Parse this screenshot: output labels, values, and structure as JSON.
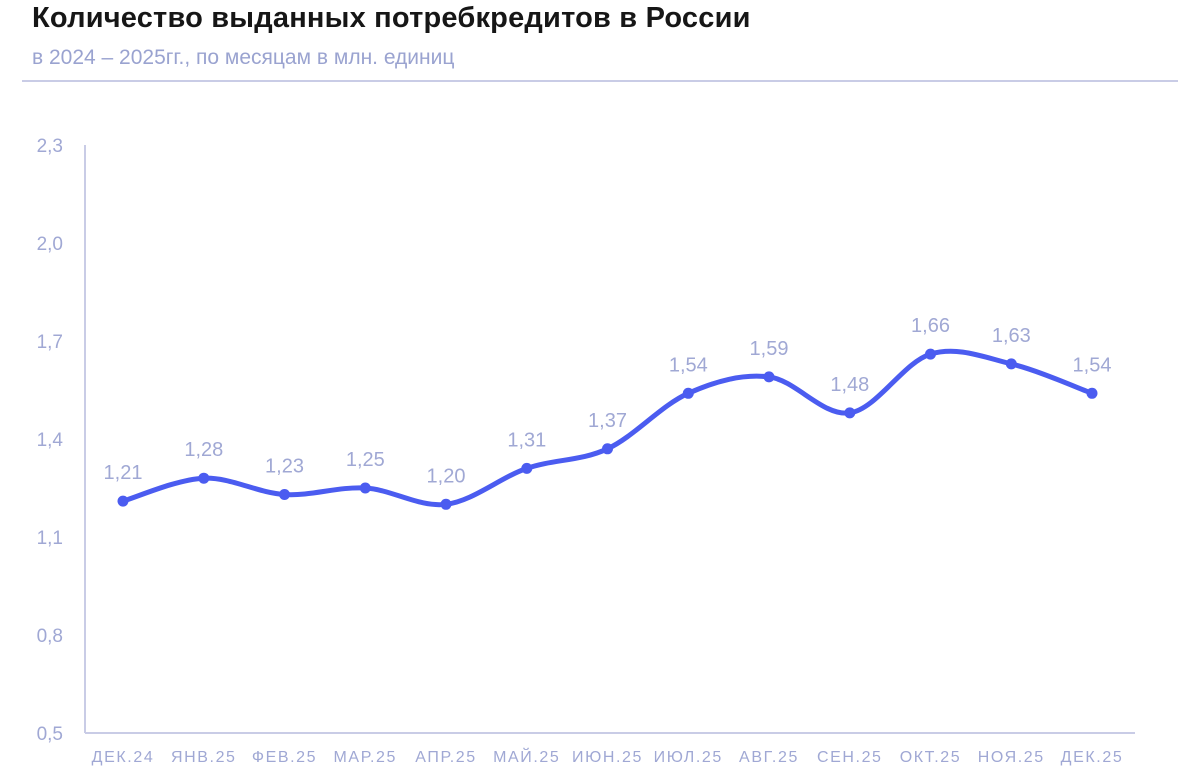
{
  "chart_data": {
    "type": "line",
    "title": "Количество выданных потребкредитов в России",
    "subtitle": "в 2024 – 2025гг., по месяцам в млн. единиц",
    "categories": [
      "ДЕК.24",
      "ЯНВ.25",
      "ФЕВ.25",
      "МАР.25",
      "АПР.25",
      "МАЙ.25",
      "ИЮН.25",
      "ИЮЛ.25",
      "АВГ.25",
      "СЕН.25",
      "ОКТ.25",
      "НОЯ.25",
      "ДЕК.25"
    ],
    "values": [
      1.21,
      1.28,
      1.23,
      1.25,
      1.2,
      1.31,
      1.37,
      1.54,
      1.59,
      1.48,
      1.66,
      1.63,
      1.54
    ],
    "point_labels": [
      "1,21",
      "1,28",
      "1,23",
      "1,25",
      "1,20",
      "1,31",
      "1,37",
      "1,54",
      "1,59",
      "1,48",
      "1,66",
      "1,63",
      "1,54"
    ],
    "xlabel": "",
    "ylabel": "",
    "ylim": [
      0.5,
      2.3
    ],
    "yticks": [
      0.5,
      0.8,
      1.1,
      1.4,
      1.7,
      2.0,
      2.3
    ],
    "ytick_labels": [
      "0,5",
      "0,8",
      "1,1",
      "1,4",
      "1,7",
      "2,0",
      "2,3"
    ],
    "grid": false,
    "legend_position": "none",
    "colors": {
      "line": "#4b5cf0",
      "point": "#4b5cf0",
      "labels": "#a0a8d4",
      "axis": "#c9cce6",
      "title": "#161616",
      "subtitle": "#9aa3d0",
      "divider": "#c9cce6",
      "background": "#ffffff"
    }
  }
}
